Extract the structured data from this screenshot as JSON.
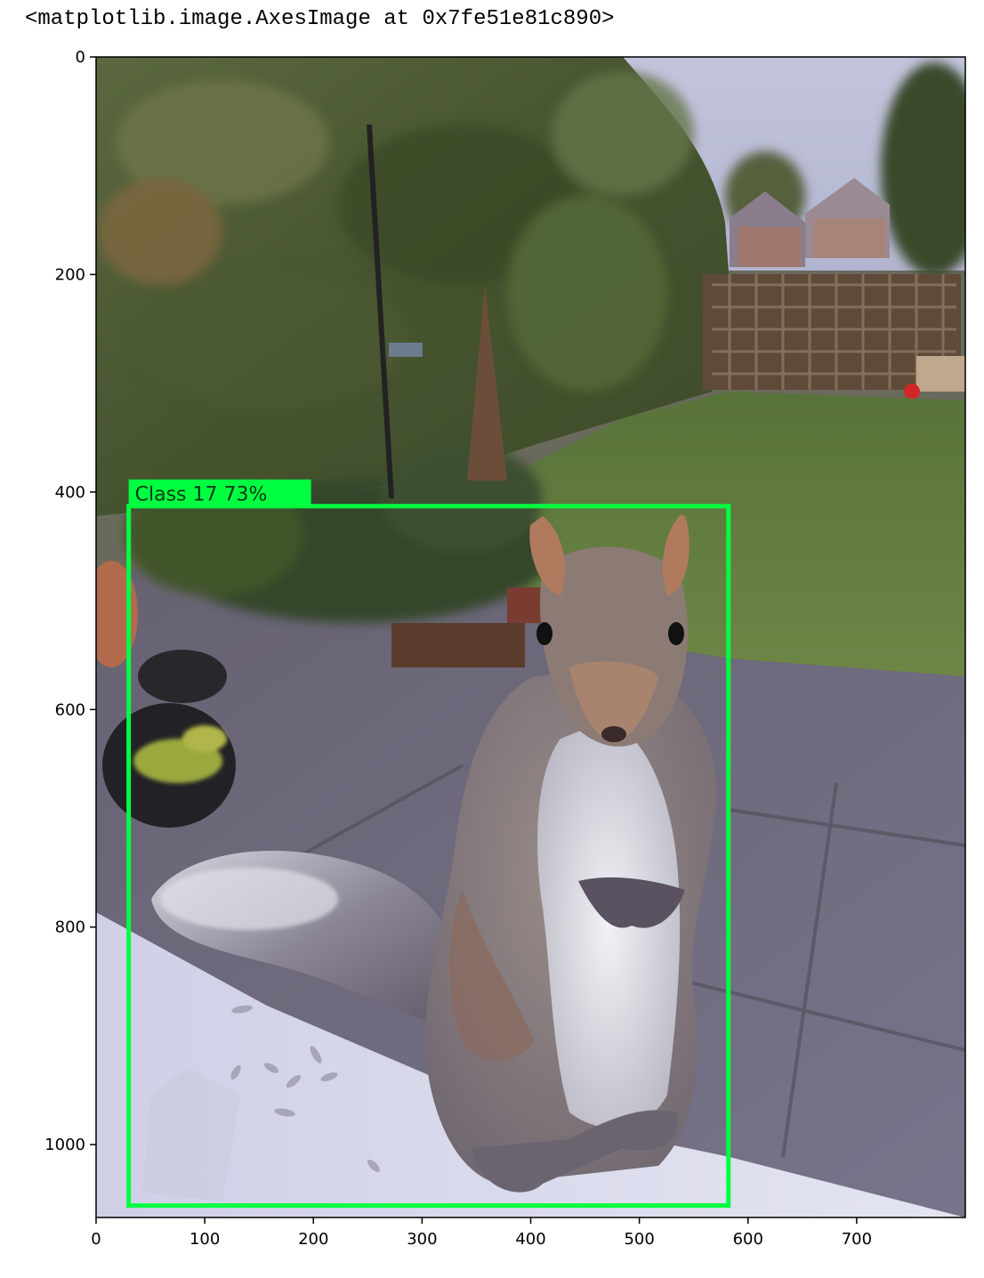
{
  "output_repr": "<matplotlib.image.AxesImage at 0x7fe51e81c890>",
  "image_extent": {
    "width": 800,
    "height": 1067
  },
  "x_ticks": [
    0,
    100,
    200,
    300,
    400,
    500,
    600,
    700
  ],
  "y_ticks": [
    0,
    200,
    400,
    600,
    800,
    1000
  ],
  "detection": {
    "label": "Class 17 73%",
    "color": "#00ff40",
    "box": {
      "x_min": 30,
      "y_min": 413,
      "x_max": 582,
      "y_max": 1056
    }
  },
  "photo": {
    "subject": "grey squirrel",
    "sky_color": "#bcc0d8",
    "hedge_color": "#4f5c36",
    "lawn_color": "#5f7a3a",
    "patio_color": "#6e6a78",
    "ledge_color": "#d8d9ea",
    "fence_color": "#5a4534"
  }
}
